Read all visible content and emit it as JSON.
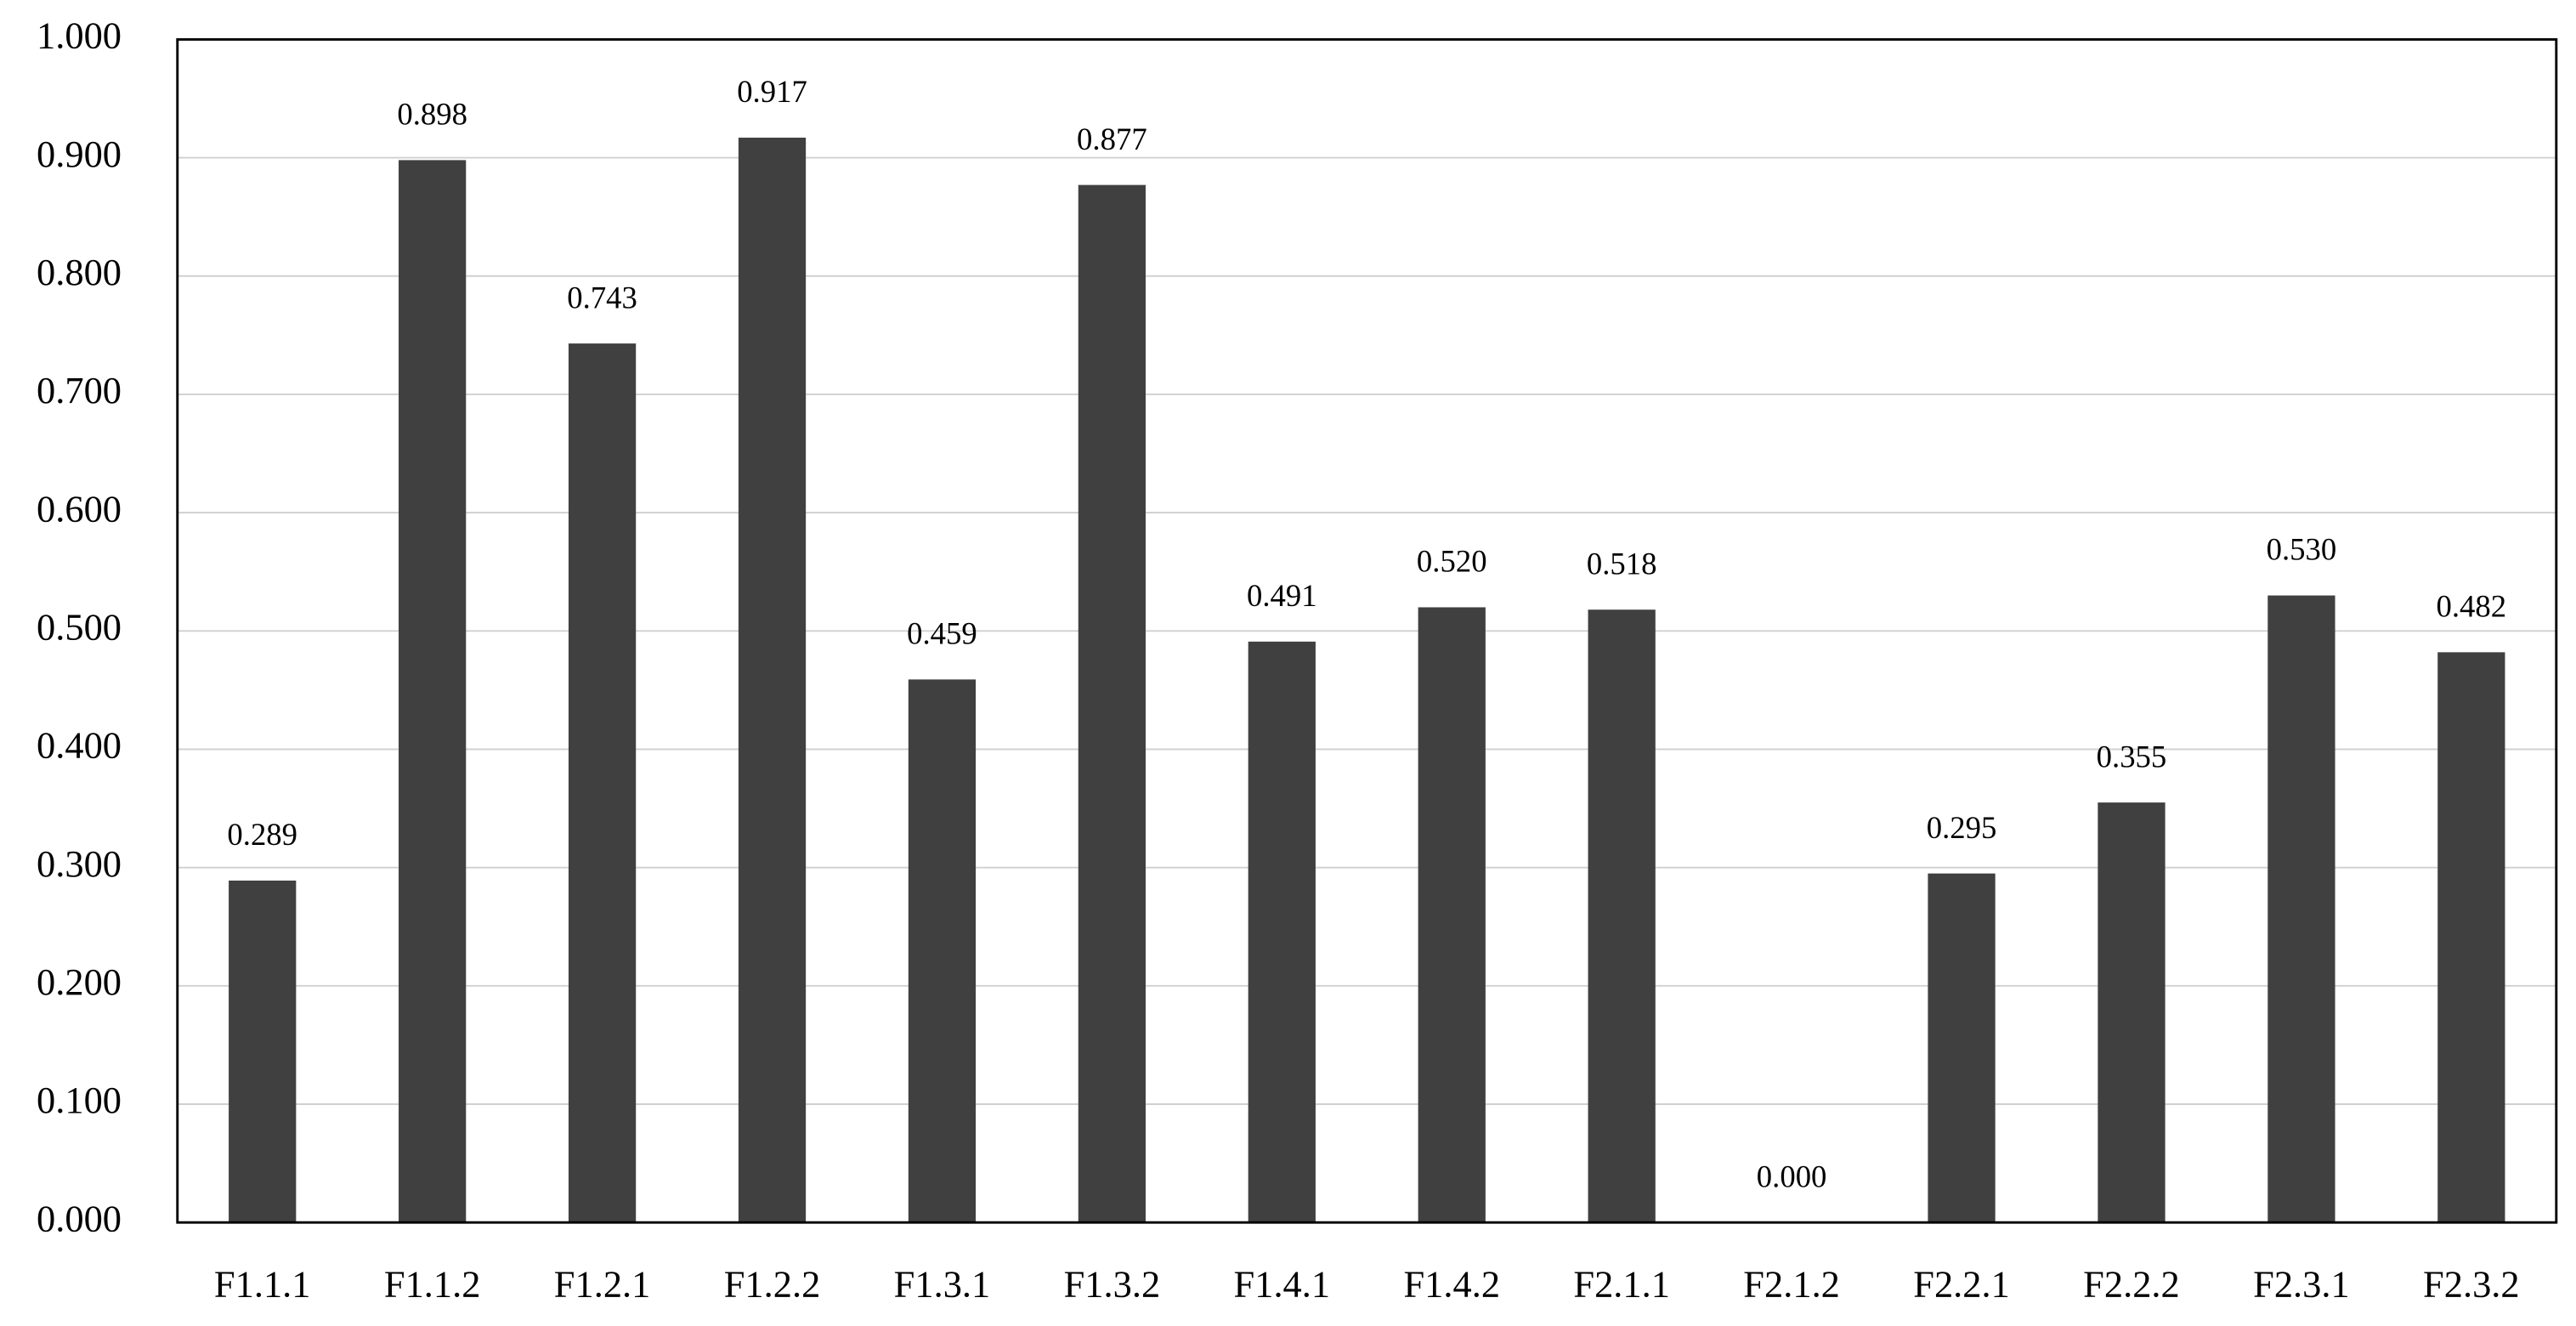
{
  "chart_data": {
    "type": "bar",
    "categories": [
      "F1.1.1",
      "F1.1.2",
      "F1.2.1",
      "F1.2.2",
      "F1.3.1",
      "F1.3.2",
      "F1.4.1",
      "F1.4.2",
      "F2.1.1",
      "F2.1.2",
      "F2.2.1",
      "F2.2.2",
      "F2.3.1",
      "F2.3.2"
    ],
    "values": [
      0.289,
      0.898,
      0.743,
      0.917,
      0.459,
      0.877,
      0.491,
      0.52,
      0.518,
      0,
      0.295,
      0.355,
      0.53,
      0.482
    ],
    "value_labels": [
      "0.289",
      "0.898",
      "0.743",
      "0.917",
      "0.459",
      "0.877",
      "0.491",
      "0.520",
      "0.518",
      "0.000",
      "0.295",
      "0.355",
      "0.530",
      "0.482"
    ],
    "color": "#404040",
    "ylim": [
      0,
      1
    ],
    "yticks": [
      {
        "value": 0,
        "label": "0.000"
      },
      {
        "value": 0.1,
        "label": "0.100"
      },
      {
        "value": 0.2,
        "label": "0.200"
      },
      {
        "value": 0.3,
        "label": "0.300"
      },
      {
        "value": 0.4,
        "label": "0.400"
      },
      {
        "value": 0.5,
        "label": "0.500"
      },
      {
        "value": 0.6,
        "label": "0.600"
      },
      {
        "value": 0.7,
        "label": "0.700"
      },
      {
        "value": 0.8,
        "label": "0.800"
      },
      {
        "value": 0.9,
        "label": "0.900"
      },
      {
        "value": 1,
        "label": "1.000"
      }
    ],
    "grid": true
  }
}
